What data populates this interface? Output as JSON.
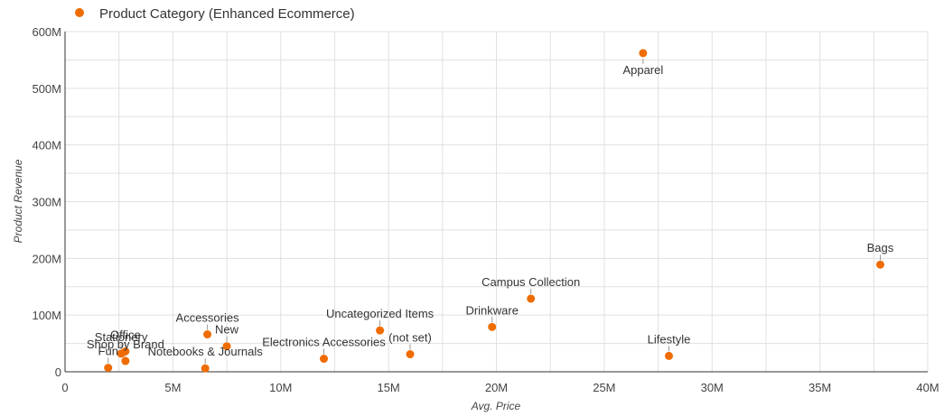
{
  "chart_data": {
    "type": "scatter",
    "legend": {
      "label": "Product Category (Enhanced Ecommerce)",
      "position": "top-left"
    },
    "xlabel": "Avg. Price",
    "ylabel": "Product Revenue",
    "xlim": [
      0,
      40000000
    ],
    "ylim": [
      0,
      600000000
    ],
    "x_ticks": [
      {
        "value": 0,
        "label": "0"
      },
      {
        "value": 5000000,
        "label": "5M"
      },
      {
        "value": 10000000,
        "label": "10M"
      },
      {
        "value": 15000000,
        "label": "15M"
      },
      {
        "value": 20000000,
        "label": "20M"
      },
      {
        "value": 25000000,
        "label": "25M"
      },
      {
        "value": 30000000,
        "label": "30M"
      },
      {
        "value": 35000000,
        "label": "35M"
      },
      {
        "value": 40000000,
        "label": "40M"
      }
    ],
    "y_ticks": [
      {
        "value": 0,
        "label": "0"
      },
      {
        "value": 100000000,
        "label": "100M"
      },
      {
        "value": 200000000,
        "label": "200M"
      },
      {
        "value": 300000000,
        "label": "300M"
      },
      {
        "value": 400000000,
        "label": "400M"
      },
      {
        "value": 500000000,
        "label": "500M"
      },
      {
        "value": 600000000,
        "label": "600M"
      }
    ],
    "grid": true,
    "point_color": "#EF6C00",
    "points": [
      {
        "label": "Apparel",
        "x": 26800000,
        "y": 562000000,
        "label_pos": "below"
      },
      {
        "label": "Bags",
        "x": 37800000,
        "y": 189000000,
        "label_pos": "above"
      },
      {
        "label": "Campus Collection",
        "x": 21600000,
        "y": 129000000,
        "label_pos": "above"
      },
      {
        "label": "Drinkware",
        "x": 19800000,
        "y": 79000000,
        "label_pos": "above"
      },
      {
        "label": "Uncategorized Items",
        "x": 14600000,
        "y": 73000000,
        "label_pos": "above"
      },
      {
        "label": "(not set)",
        "x": 16000000,
        "y": 31000000,
        "label_pos": "above"
      },
      {
        "label": "Lifestyle",
        "x": 28000000,
        "y": 28000000,
        "label_pos": "above"
      },
      {
        "label": "Electronics Accessories",
        "x": 12000000,
        "y": 23000000,
        "label_pos": "above"
      },
      {
        "label": "Accessories",
        "x": 6600000,
        "y": 66000000,
        "label_pos": "above"
      },
      {
        "label": "New",
        "x": 7500000,
        "y": 45000000,
        "label_pos": "above"
      },
      {
        "label": "Notebooks & Journals",
        "x": 6500000,
        "y": 6000000,
        "label_pos": "above"
      },
      {
        "label": "Office",
        "x": 2800000,
        "y": 36000000,
        "label_pos": "above"
      },
      {
        "label": "Stationery",
        "x": 2600000,
        "y": 32000000,
        "label_pos": "above"
      },
      {
        "label": "Shop by Brand",
        "x": 2800000,
        "y": 19000000,
        "label_pos": "above"
      },
      {
        "label": "Fun",
        "x": 2000000,
        "y": 7000000,
        "label_pos": "above"
      }
    ]
  }
}
